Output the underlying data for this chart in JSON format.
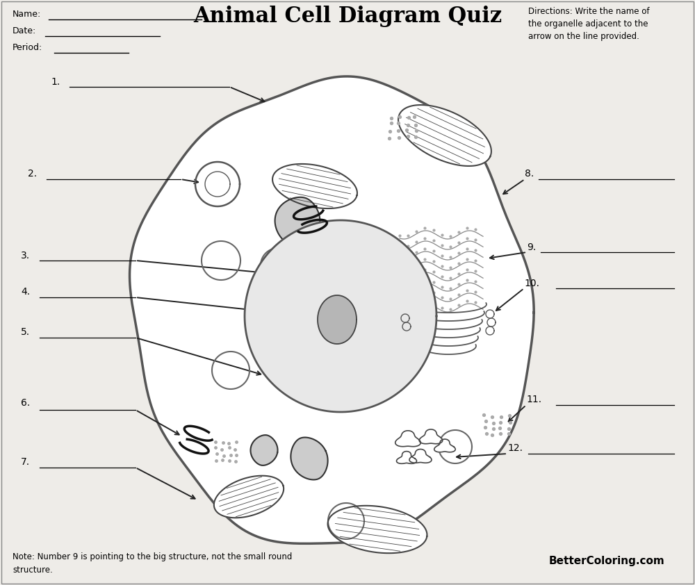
{
  "title": "Animal Cell Diagram Quiz",
  "directions_text": "Directions: Write the name of\nthe organelle adjacent to the\narrow on the line provided.",
  "note_text": "Note: Number 9 is pointing to the big structure, not the small round\nstructure.",
  "watermark": "BetterColoring.com",
  "bg_color": "#eeece8"
}
